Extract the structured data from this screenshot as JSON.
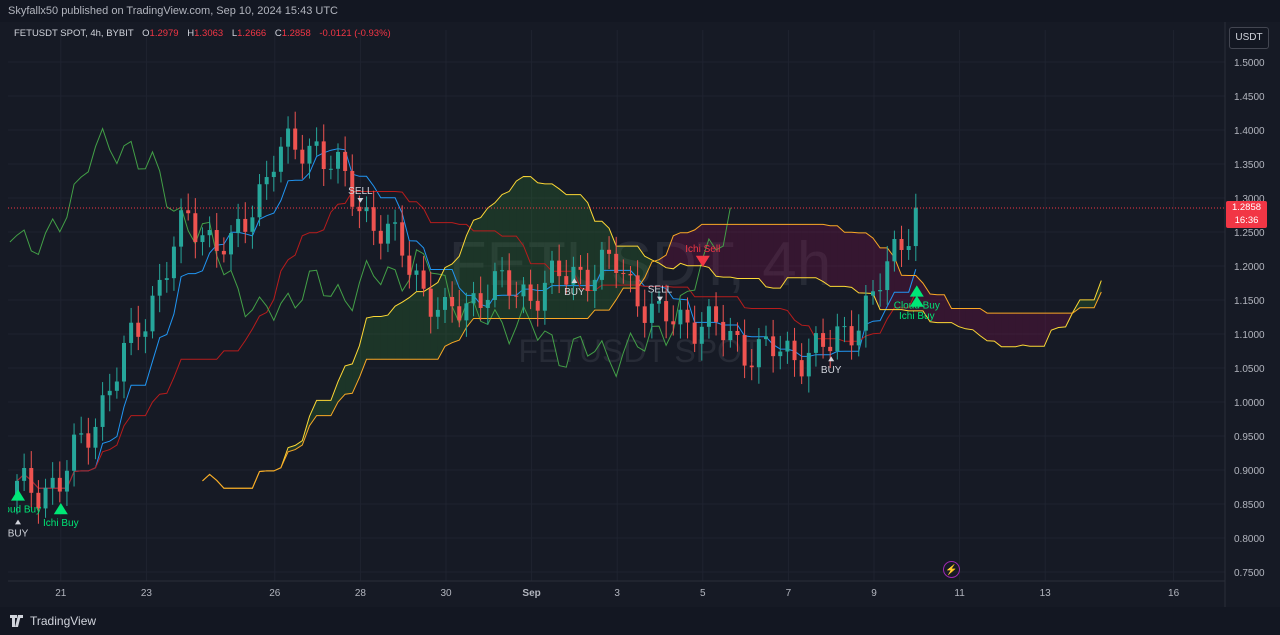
{
  "header": {
    "published_line": "Skyfallx50 published on TradingView.com, Sep 10, 2024 15:43 UTC"
  },
  "legend": {
    "symbol": "FETUSDT SPOT, 4h, BYBIT",
    "o_label": "O",
    "o_value": "1.2979",
    "h_label": "H",
    "h_value": "1.3063",
    "l_label": "L",
    "l_value": "1.2666",
    "c_label": "C",
    "c_value": "1.2858",
    "change": "-0.0121 (-0.93%)"
  },
  "currency_button": "USDT",
  "last_price": {
    "value": "1.2858",
    "countdown": "16:36"
  },
  "watermark": {
    "main": "FETUSDT, 4h",
    "sub": "FETUSDT SPOT"
  },
  "footer": {
    "brand": "TradingView"
  },
  "colors": {
    "bull": "#26a69a",
    "bear": "#ef5350",
    "tenkan": "#2196f3",
    "kijun": "#b71c1c",
    "chikou": "#43a047",
    "senkou_a": "#fdd835",
    "senkou_b": "#f9a825",
    "cloud_bull": "#2e7d32",
    "cloud_bear": "#880e4f",
    "signal_buy": "#00e676",
    "signal_sell": "#f23645"
  },
  "chart_data": {
    "type": "candlestick",
    "title": "FETUSDT SPOT, 4h, BYBIT",
    "y_axis": {
      "min": 0.75,
      "max": 1.5,
      "ticks": [
        "1.5000",
        "1.4500",
        "1.4000",
        "1.3500",
        "1.3000",
        "1.2500",
        "1.2000",
        "1.1500",
        "1.1000",
        "1.0500",
        "1.0000",
        "0.9500",
        "0.9000",
        "0.8500",
        "0.8000",
        "0.7500"
      ]
    },
    "x_axis": {
      "ticks": [
        "21",
        "23",
        "26",
        "28",
        "30",
        "Sep",
        "3",
        "5",
        "7",
        "9",
        "11",
        "13",
        "16"
      ]
    },
    "grid": true,
    "ohlc_key_points": [
      {
        "x": "20 Aug",
        "close": 0.87
      },
      {
        "x": "21 Aug",
        "close": 0.88
      },
      {
        "x": "22 Aug",
        "close": 1.0
      },
      {
        "x": "23 Aug",
        "close": 1.13
      },
      {
        "x": "24 Aug",
        "close": 1.27
      },
      {
        "x": "25 Aug",
        "close": 1.22
      },
      {
        "x": "26 Aug",
        "close": 1.36
      },
      {
        "x": "27 Aug",
        "close": 1.38
      },
      {
        "x": "28 Aug",
        "close": 1.29
      },
      {
        "x": "29 Aug",
        "close": 1.22
      },
      {
        "x": "30 Aug",
        "close": 1.12
      },
      {
        "x": "31 Aug",
        "close": 1.17
      },
      {
        "x": "1 Sep",
        "close": 1.16
      },
      {
        "x": "2 Sep",
        "close": 1.19
      },
      {
        "x": "3 Sep",
        "close": 1.2
      },
      {
        "x": "4 Sep",
        "close": 1.12
      },
      {
        "x": "5 Sep",
        "close": 1.12
      },
      {
        "x": "6 Sep",
        "close": 1.08
      },
      {
        "x": "7 Sep",
        "close": 1.07
      },
      {
        "x": "8 Sep",
        "close": 1.08
      },
      {
        "x": "9 Sep",
        "close": 1.15
      },
      {
        "x": "10 Sep",
        "close": 1.2858
      }
    ],
    "last_price": 1.2858,
    "signals": [
      {
        "label": "BUY",
        "x": "20 Aug",
        "price": 0.82
      },
      {
        "label": "Cloud Buy",
        "x": "20 Aug",
        "price": 0.855
      },
      {
        "label": "Ichi Buy",
        "x": "21 Aug",
        "price": 0.835
      },
      {
        "label": "SELL",
        "x": "28 Aug",
        "price": 1.3
      },
      {
        "label": "BUY",
        "x": "2 Sep",
        "price": 1.175
      },
      {
        "label": "SELL",
        "x": "4 Sep",
        "price": 1.155
      },
      {
        "label": "Ichi Sell",
        "x": "5 Sep",
        "price": 1.215
      },
      {
        "label": "BUY",
        "x": "8 Sep",
        "price": 1.06
      },
      {
        "label": "Ichi Buy",
        "x": "10 Sep",
        "price": 1.14
      },
      {
        "label": "Cloud Buy",
        "x": "10 Sep",
        "price": 1.155
      }
    ]
  }
}
